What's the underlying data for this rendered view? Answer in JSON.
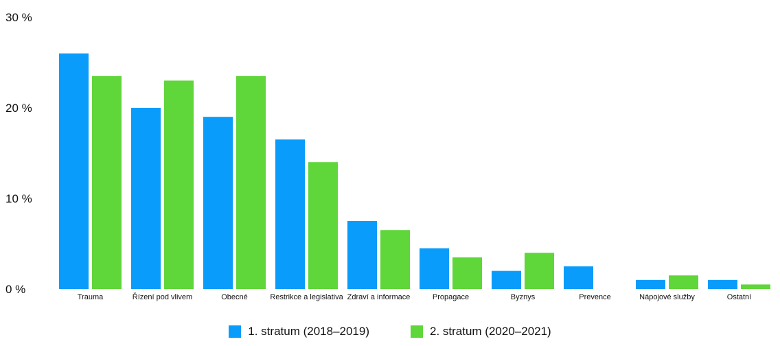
{
  "colors": {
    "series1": "#0a9cfa",
    "series2": "#5fd63a"
  },
  "chart_data": {
    "type": "bar",
    "title": "",
    "xlabel": "",
    "ylabel": "",
    "ylim": [
      0,
      30
    ],
    "yticks": [
      0,
      10,
      20,
      30
    ],
    "ytick_labels": [
      "0 %",
      "10 %",
      "20 %",
      "30 %"
    ],
    "grid": false,
    "legend_position": "bottom-center",
    "categories": [
      "Trauma",
      "Řízení pod vlivem",
      "Obecné",
      "Restrikce a legislativa",
      "Zdraví a informace",
      "Propagace",
      "Byznys",
      "Prevence",
      "Nápojové služby",
      "Ostatní"
    ],
    "series": [
      {
        "name": "1. stratum (2018–2019)",
        "values": [
          26,
          20,
          19,
          16.5,
          7.5,
          4.5,
          2,
          2.5,
          1,
          1
        ]
      },
      {
        "name": "2. stratum (2020–2021)",
        "values": [
          23.5,
          23,
          23.5,
          14,
          6.5,
          3.5,
          4,
          0,
          1.5,
          0.5
        ]
      }
    ]
  }
}
